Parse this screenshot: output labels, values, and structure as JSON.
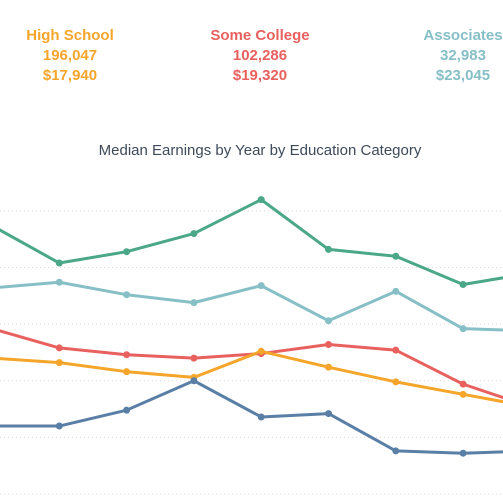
{
  "kpis": [
    {
      "label": "High School",
      "count": "196,047",
      "earnings": "$17,940",
      "color": "#f5a52a"
    },
    {
      "label": "Some College",
      "count": "102,286",
      "earnings": "$19,320",
      "color": "#e8615f"
    },
    {
      "label": "Associates",
      "count": "32,983",
      "earnings": "$23,045",
      "color": "#86bfc6"
    }
  ],
  "chart_data": {
    "type": "line",
    "title": "Median Earnings by Year by Education Category",
    "xlabel": "",
    "ylabel": "",
    "grid": true,
    "x": [
      0,
      1,
      2,
      3,
      4,
      5,
      6,
      7,
      8
    ],
    "series": [
      {
        "color": "#4aa888",
        "values": [
          28700,
          25400,
          26400,
          28000,
          31000,
          26600,
          26000,
          23500,
          24500
        ]
      },
      {
        "color": "#86bfc6",
        "values": [
          23200,
          23700,
          22600,
          21900,
          23400,
          20300,
          22900,
          19600,
          19400
        ]
      },
      {
        "color": "#e8615f",
        "values": [
          19600,
          17900,
          17300,
          17000,
          17400,
          18200,
          17700,
          14700,
          12700
        ]
      },
      {
        "color": "#f5a52a",
        "values": [
          17000,
          16600,
          15800,
          15300,
          17600,
          16200,
          14900,
          13800,
          12700
        ]
      },
      {
        "color": "#5a7fa6",
        "values": [
          11000,
          11000,
          12400,
          15000,
          11800,
          12100,
          8800,
          8600,
          8800
        ]
      }
    ],
    "ylim": [
      4200,
      34500
    ]
  }
}
